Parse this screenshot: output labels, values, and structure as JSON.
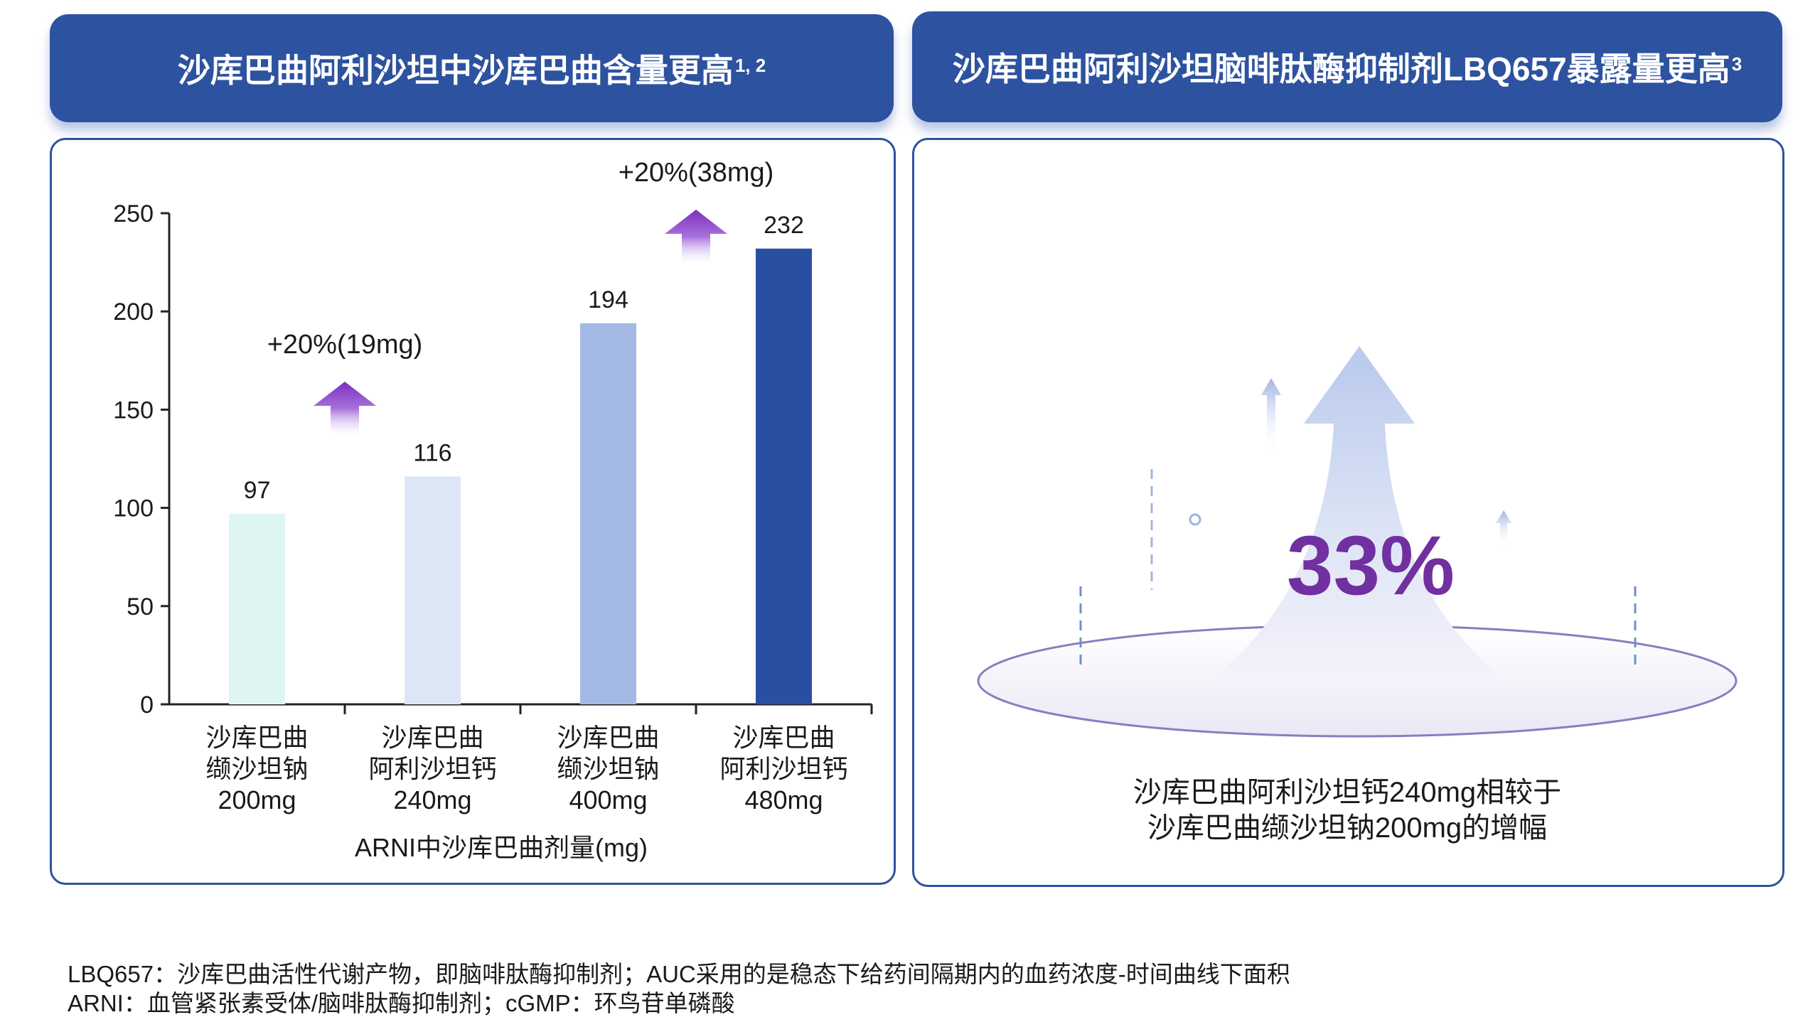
{
  "left_header": {
    "title": "沙库巴曲阿利沙坦中沙库巴曲含量更高",
    "sup": "1, 2"
  },
  "right_header": {
    "title": "沙库巴曲阿利沙坦脑啡肽酶抑制剂LBQ657暴露量更高",
    "sup": "3"
  },
  "chart_data": {
    "type": "bar",
    "categories": [
      [
        "沙库巴曲",
        "缬沙坦钠",
        "200mg"
      ],
      [
        "沙库巴曲",
        "阿利沙坦钙",
        "240mg"
      ],
      [
        "沙库巴曲",
        "缬沙坦钠",
        "400mg"
      ],
      [
        "沙库巴曲",
        "阿利沙坦钙",
        "480mg"
      ]
    ],
    "values": [
      97,
      116,
      194,
      232
    ],
    "value_labels": [
      "97",
      "116",
      "194",
      "232"
    ],
    "colors": [
      "#dff5f1",
      "#dde6f5",
      "#a4bae4",
      "#2b4fa0"
    ],
    "xlabel": "ARNI中沙库巴曲剂量(mg)",
    "ylabel": "",
    "ylim": [
      0,
      250
    ],
    "yticks": [
      0,
      50,
      100,
      150,
      200,
      250
    ],
    "ytick_labels": [
      "0",
      "50",
      "100",
      "150",
      "200",
      "250"
    ],
    "grid": false,
    "annotations": [
      {
        "text": "+20%(19mg)",
        "between": [
          0,
          1
        ],
        "arrow_color": "#8a3fc8"
      },
      {
        "text": "+20%(38mg)",
        "between": [
          2,
          3
        ],
        "arrow_color": "#8a3fc8"
      }
    ]
  },
  "right_panel": {
    "big_value": "33%",
    "big_value_color": "#7030a0",
    "caption_line1": "沙库巴曲阿利沙坦钙240mg相较于",
    "caption_line2": "沙库巴曲缬沙坦钠200mg的增幅"
  },
  "footer": {
    "line1": "LBQ657：沙库巴曲活性代谢产物，即脑啡肽酶抑制剂；AUC采用的是稳态下给药间隔期内的血药浓度-时间曲线下面积",
    "line2": "ARNI：血管紧张素受体/脑啡肽酶抑制剂；cGMP：环鸟苷单磷酸"
  }
}
